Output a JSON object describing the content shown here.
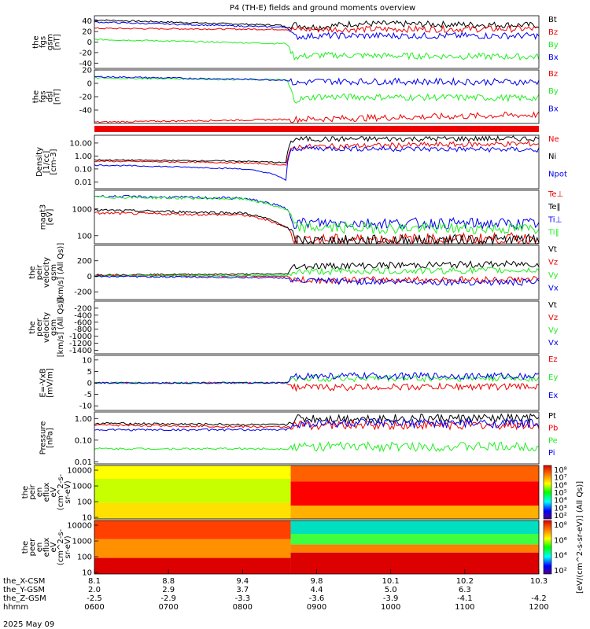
{
  "figure": {
    "title": "P4 (TH-E) fields and ground moments overview",
    "date_label": "2025 May 09"
  },
  "colors": {
    "black": "#000000",
    "red": "#ee0000",
    "green": "#22ee22",
    "blue": "#0000ee"
  },
  "chart_data": [
    {
      "type": "line",
      "panel": "fgs-gsm",
      "ylabel": [
        "the",
        "fgs",
        "gsm",
        "[nT]"
      ],
      "ylim": [
        -50,
        50
      ],
      "yticks": [
        40,
        20,
        0,
        -20,
        -40
      ],
      "series": [
        {
          "name": "Bt",
          "color": "black",
          "x_hours": [
            6.0,
            8.5,
            8.6,
            8.7,
            9.0,
            9.5,
            12.0
          ],
          "values": [
            42,
            32,
            28,
            33,
            28,
            35,
            32
          ]
        },
        {
          "name": "Bz",
          "color": "red",
          "x_hours": [
            6.0,
            8.6,
            12.0
          ],
          "values": [
            26,
            24,
            25
          ]
        },
        {
          "name": "By",
          "color": "green",
          "x_hours": [
            6.0,
            8.6,
            8.7,
            9.0,
            12.0
          ],
          "values": [
            5,
            -3,
            -28,
            -25,
            -28
          ]
        },
        {
          "name": "Bx",
          "color": "blue",
          "x_hours": [
            6.0,
            8.6,
            8.7,
            9.0,
            12.0
          ],
          "values": [
            38,
            28,
            10,
            12,
            12
          ]
        }
      ]
    },
    {
      "type": "line",
      "panel": "fgs-dsl",
      "ylabel": [
        "the",
        "fgs",
        "dsl",
        "[nT]"
      ],
      "ylim": [
        -60,
        20
      ],
      "yticks": [
        20,
        0,
        -20,
        -40
      ],
      "series": [
        {
          "name": "Bz",
          "color": "red",
          "x_hours": [
            6.0,
            8.6,
            12.0
          ],
          "values": [
            -58,
            -54,
            -47
          ]
        },
        {
          "name": "By",
          "color": "green",
          "x_hours": [
            6.0,
            8.6,
            8.7,
            9.0,
            12.0
          ],
          "values": [
            8,
            5,
            -25,
            -20,
            -22
          ]
        },
        {
          "name": "Bx",
          "color": "blue",
          "x_hours": [
            6.0,
            8.6,
            8.7,
            9.0,
            12.0
          ],
          "values": [
            10,
            5,
            0,
            3,
            2
          ]
        }
      ]
    },
    {
      "type": "line",
      "panel": "density",
      "ylabel": [
        "Density",
        "[1/cc]",
        "[cm-3]"
      ],
      "scale": "log",
      "ylim": [
        0.003,
        40
      ],
      "yticks": [
        "10.00",
        "1.00",
        "0.10",
        "0.01"
      ],
      "series": [
        {
          "name": "Ne",
          "color": "red",
          "x_hours": [
            6.0,
            8.0,
            8.6,
            8.7,
            12.0
          ],
          "values": [
            0.4,
            0.3,
            0.2,
            5,
            9
          ]
        },
        {
          "name": "Ni",
          "color": "black",
          "x_hours": [
            6.0,
            8.0,
            8.6,
            8.7,
            12.0
          ],
          "values": [
            0.5,
            0.4,
            0.3,
            20,
            22
          ]
        },
        {
          "name": "Npot",
          "color": "blue",
          "x_hours": [
            6.0,
            8.0,
            8.6,
            8.7,
            12.0
          ],
          "values": [
            0.2,
            0.1,
            0.01,
            4,
            3
          ]
        }
      ]
    },
    {
      "type": "line",
      "panel": "temperature",
      "ylabel": [
        "magt3",
        "[eV]"
      ],
      "scale": "log",
      "ylim": [
        50,
        5000
      ],
      "yticks": [
        "1000",
        "100"
      ],
      "series": [
        {
          "name": "Te⊥",
          "color": "red",
          "x_hours": [
            6.0,
            8.0,
            8.6,
            8.7,
            12.0
          ],
          "values": [
            700,
            600,
            200,
            70,
            80
          ]
        },
        {
          "name": "Te‖",
          "color": "black",
          "x_hours": [
            6.0,
            8.0,
            8.6,
            8.7,
            12.0
          ],
          "values": [
            900,
            700,
            200,
            65,
            70
          ]
        },
        {
          "name": "Ti⊥",
          "color": "blue",
          "x_hours": [
            6.0,
            8.0,
            8.6,
            8.7,
            12.0
          ],
          "values": [
            3000,
            2500,
            1000,
            300,
            280
          ]
        },
        {
          "name": "Ti‖",
          "color": "green",
          "x_hours": [
            6.0,
            8.0,
            8.6,
            8.7,
            12.0
          ],
          "values": [
            2800,
            2400,
            900,
            200,
            180
          ]
        }
      ]
    },
    {
      "type": "line",
      "panel": "peir-velocity",
      "ylabel": [
        "the",
        "peir",
        "velocity",
        "gsm",
        "[km/s] (All Qs)]"
      ],
      "ylim": [
        -300,
        400
      ],
      "yticks": [
        200,
        0,
        -200
      ],
      "series": [
        {
          "name": "Vt",
          "color": "black",
          "x_hours": [
            6.0,
            8.6,
            8.7,
            12.0
          ],
          "values": [
            20,
            30,
            130,
            160
          ]
        },
        {
          "name": "Vz",
          "color": "red",
          "x_hours": [
            6.0,
            8.6,
            8.7,
            12.0
          ],
          "values": [
            10,
            0,
            -50,
            -40
          ]
        },
        {
          "name": "Vy",
          "color": "green",
          "x_hours": [
            6.0,
            8.6,
            8.7,
            12.0
          ],
          "values": [
            5,
            10,
            60,
            80
          ]
        },
        {
          "name": "Vx",
          "color": "blue",
          "x_hours": [
            6.0,
            8.6,
            8.7,
            12.0
          ],
          "values": [
            0,
            -20,
            -60,
            -80
          ]
        }
      ]
    },
    {
      "type": "line",
      "panel": "peer-velocity",
      "ylabel": [
        "the",
        "peer",
        "velocity",
        "gsm",
        "[km/s] (All Qs)]"
      ],
      "ylim": [
        -1500,
        0
      ],
      "yticks": [
        -200,
        -400,
        -600,
        -800,
        -1000,
        -1200,
        -1400
      ],
      "series": [
        {
          "name": "Vt",
          "color": "black",
          "values": []
        },
        {
          "name": "Vz",
          "color": "red",
          "values": []
        },
        {
          "name": "Vy",
          "color": "green",
          "values": []
        },
        {
          "name": "Vx",
          "color": "blue",
          "values": []
        }
      ]
    },
    {
      "type": "line",
      "panel": "efield",
      "ylabel": [
        "E=-VxB",
        "[mV/m]"
      ],
      "ylim": [
        -12,
        12
      ],
      "yticks": [
        10,
        5,
        0,
        -5,
        -10
      ],
      "series": [
        {
          "name": "Ez",
          "color": "red",
          "x_hours": [
            6.0,
            8.6,
            8.7,
            12.0
          ],
          "values": [
            0,
            0,
            -2,
            -1.5
          ]
        },
        {
          "name": "Ey",
          "color": "green",
          "x_hours": [
            6.0,
            8.6,
            8.7,
            12.0
          ],
          "values": [
            0,
            0,
            2,
            2
          ]
        },
        {
          "name": "Ex",
          "color": "blue",
          "x_hours": [
            6.0,
            8.6,
            8.7,
            12.0
          ],
          "values": [
            0,
            0,
            3,
            3
          ]
        }
      ]
    },
    {
      "type": "line",
      "panel": "pressure",
      "ylabel": [
        "Pressure",
        "[nPa]"
      ],
      "scale": "log",
      "ylim": [
        0.008,
        2
      ],
      "yticks": [
        "1.00",
        "0.10",
        "0.01"
      ],
      "series": [
        {
          "name": "Pt",
          "color": "black",
          "x_hours": [
            6.0,
            8.6,
            8.7,
            12.0
          ],
          "values": [
            0.6,
            0.5,
            1.0,
            1.0
          ]
        },
        {
          "name": "Pb",
          "color": "red",
          "x_hours": [
            6.0,
            8.6,
            8.7,
            12.0
          ],
          "values": [
            0.5,
            0.4,
            0.5,
            0.5
          ]
        },
        {
          "name": "Pe",
          "color": "green",
          "x_hours": [
            6.0,
            8.6,
            8.7,
            12.0
          ],
          "values": [
            0.04,
            0.04,
            0.05,
            0.05
          ]
        },
        {
          "name": "Pi",
          "color": "blue",
          "x_hours": [
            6.0,
            8.6,
            8.7,
            12.0
          ],
          "values": [
            0.3,
            0.3,
            0.6,
            0.6
          ]
        }
      ]
    },
    {
      "type": "heatmap",
      "panel": "peir-energy",
      "ylabel": [
        "the",
        "peir",
        "en",
        "eflux",
        "eV",
        "(cm^2-s-",
        "sr-eV)"
      ],
      "scale": "log",
      "ylim": [
        8,
        20000
      ],
      "yticks": [
        "10000",
        "1000",
        "100",
        "10"
      ],
      "colorbar": [
        "10⁸",
        "10⁷",
        "10⁶",
        "10⁵",
        "10⁴",
        "10³",
        "10²"
      ]
    },
    {
      "type": "heatmap",
      "panel": "peer-energy",
      "ylabel": [
        "the",
        "peer",
        "en",
        "eflux",
        "eV",
        "(cm^2-s-",
        "sr-eV)"
      ],
      "scale": "log",
      "ylim": [
        8,
        20000
      ],
      "yticks": [
        "10000",
        "1000",
        "100",
        "10"
      ],
      "colorbar": [
        "10⁸",
        "10⁶",
        "10⁴",
        "10²"
      ]
    }
  ],
  "colorbar_label": "[eV/(cm^2-s-sr-eV)] (All Qs)]",
  "x_axis": {
    "rows": [
      {
        "label": "the_X-CSM",
        "ticks": [
          "8.1",
          "8.8",
          "9.4",
          "9.8",
          "10.1",
          "10.2",
          "10.3"
        ]
      },
      {
        "label": "the_Y-GSM",
        "ticks": [
          "2.0",
          "2.9",
          "3.7",
          "4.4",
          "5.0",
          "6.3",
          ""
        ]
      },
      {
        "label": "the_Z-GSM",
        "ticks": [
          "-2.5",
          "-2.9",
          "-3.3",
          "-3.6",
          "-3.9",
          "-4.1",
          "-4.2"
        ]
      },
      {
        "label": "hhmm",
        "ticks": [
          "0600",
          "0700",
          "0800",
          "0900",
          "1000",
          "1100",
          "1200"
        ]
      }
    ]
  }
}
